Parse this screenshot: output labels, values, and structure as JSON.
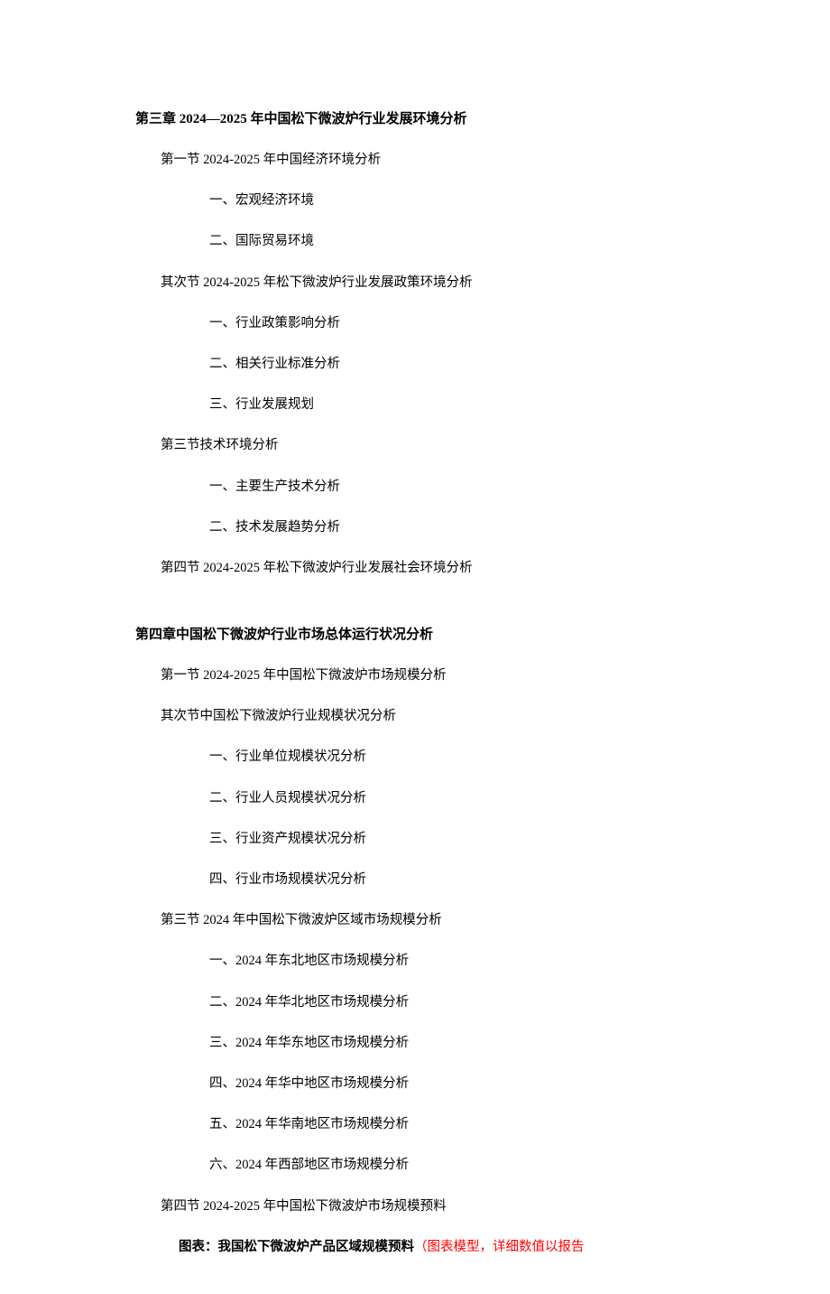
{
  "chapter3": {
    "title": "第三章 2024—2025 年中国松下微波炉行业发展环境分析",
    "sections": [
      {
        "label": "第一节 2024-2025 年中国经济环境分析",
        "items": [
          "一、宏观经济环境",
          "二、国际贸易环境"
        ]
      },
      {
        "label": "其次节 2024-2025 年松下微波炉行业发展政策环境分析",
        "items": [
          "一、行业政策影响分析",
          "二、相关行业标准分析",
          "三、行业发展规划"
        ]
      },
      {
        "label": "第三节技术环境分析",
        "items": [
          "一、主要生产技术分析",
          "二、技术发展趋势分析"
        ]
      },
      {
        "label": "第四节 2024-2025 年松下微波炉行业发展社会环境分析",
        "items": []
      }
    ]
  },
  "chapter4": {
    "title": "第四章中国松下微波炉行业市场总体运行状况分析",
    "sections": [
      {
        "label": "第一节 2024-2025 年中国松下微波炉市场规模分析",
        "items": []
      },
      {
        "label": "其次节中国松下微波炉行业规模状况分析",
        "items": [
          "一、行业单位规模状况分析",
          "二、行业人员规模状况分析",
          "三、行业资产规模状况分析",
          "四、行业市场规模状况分析"
        ]
      },
      {
        "label": "第三节 2024 年中国松下微波炉区域市场规模分析",
        "items": [
          "一、2024 年东北地区市场规模分析",
          "二、2024 年华北地区市场规模分析",
          "三、2024 年华东地区市场规模分析",
          "四、2024 年华中地区市场规模分析",
          "五、2024 年华南地区市场规模分析",
          "六、2024 年西部地区市场规模分析"
        ]
      },
      {
        "label": "第四节 2024-2025 年中国松下微波炉市场规模预料",
        "items": []
      }
    ]
  },
  "caption": {
    "bold": "图表：我国松下微波炉产品区域规模预料",
    "red": "（图表模型，详细数值以报告"
  }
}
